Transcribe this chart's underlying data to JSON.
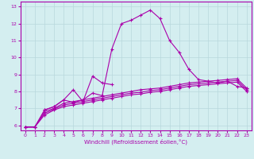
{
  "xlabel": "Windchill (Refroidissement éolien,°C)",
  "background_color": "#d4eef0",
  "line_color": "#aa00aa",
  "grid_color": "#b8d8dc",
  "xlim": [
    -0.5,
    23.5
  ],
  "ylim": [
    5.7,
    13.3
  ],
  "xticks": [
    0,
    1,
    2,
    3,
    4,
    5,
    6,
    7,
    8,
    9,
    10,
    11,
    12,
    13,
    14,
    15,
    16,
    17,
    18,
    19,
    20,
    21,
    22,
    23
  ],
  "yticks": [
    6,
    7,
    8,
    9,
    10,
    11,
    12,
    13
  ],
  "line_main_x": [
    0,
    1,
    2,
    3,
    4,
    5,
    6,
    7,
    8,
    9,
    10,
    11,
    12,
    13,
    14,
    15,
    16,
    17,
    18,
    19,
    20,
    21,
    22,
    23
  ],
  "line_main_y": [
    5.9,
    5.9,
    6.9,
    7.1,
    7.5,
    7.35,
    7.5,
    7.9,
    7.75,
    10.5,
    12.0,
    12.2,
    12.5,
    12.8,
    12.3,
    11.0,
    10.3,
    9.3,
    8.7,
    8.6,
    8.5,
    8.6,
    8.3,
    8.2
  ],
  "line_short_x": [
    2,
    3,
    4,
    5,
    6,
    7,
    8,
    9
  ],
  "line_short_y": [
    6.9,
    7.1,
    7.5,
    8.1,
    7.4,
    8.9,
    8.5,
    8.4
  ],
  "line_ref1_x": [
    0,
    1,
    2,
    3,
    4,
    5,
    6,
    7,
    8,
    9,
    10,
    11,
    12,
    13,
    14,
    15,
    16,
    17,
    18,
    19,
    20,
    21,
    22,
    23
  ],
  "line_ref1_y": [
    5.9,
    5.9,
    6.8,
    7.0,
    7.3,
    7.4,
    7.5,
    7.6,
    7.7,
    7.8,
    7.9,
    8.0,
    8.1,
    8.15,
    8.2,
    8.3,
    8.4,
    8.5,
    8.55,
    8.6,
    8.65,
    8.7,
    8.75,
    8.2
  ],
  "line_ref2_x": [
    0,
    1,
    2,
    3,
    4,
    5,
    6,
    7,
    8,
    9,
    10,
    11,
    12,
    13,
    14,
    15,
    16,
    17,
    18,
    19,
    20,
    21,
    22,
    23
  ],
  "line_ref2_y": [
    5.9,
    5.9,
    6.7,
    6.95,
    7.2,
    7.3,
    7.4,
    7.5,
    7.6,
    7.7,
    7.8,
    7.9,
    7.95,
    8.05,
    8.1,
    8.2,
    8.3,
    8.4,
    8.45,
    8.5,
    8.55,
    8.6,
    8.65,
    8.1
  ],
  "line_ref3_x": [
    0,
    1,
    2,
    3,
    4,
    5,
    6,
    7,
    8,
    9,
    10,
    11,
    12,
    13,
    14,
    15,
    16,
    17,
    18,
    19,
    20,
    21,
    22,
    23
  ],
  "line_ref3_y": [
    5.9,
    5.9,
    6.6,
    6.9,
    7.1,
    7.2,
    7.3,
    7.4,
    7.5,
    7.6,
    7.7,
    7.8,
    7.85,
    7.95,
    8.0,
    8.1,
    8.2,
    8.3,
    8.35,
    8.4,
    8.45,
    8.5,
    8.55,
    8.0
  ]
}
